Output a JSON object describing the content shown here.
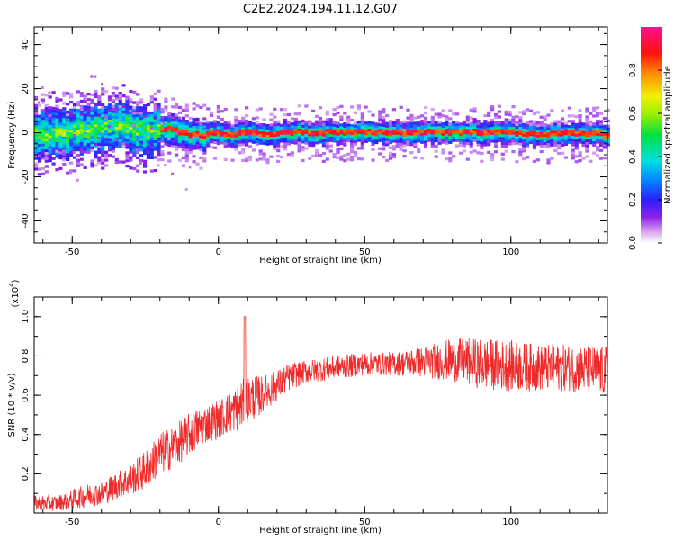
{
  "figure": {
    "title": "C2E2.2024.194.11.12.G07"
  },
  "chart_data": [
    {
      "type": "heatmap",
      "title": "",
      "xlabel": "Height of straight line (km)",
      "ylabel": "Frequency (Hz)",
      "xlim": [
        -63,
        133
      ],
      "ylim": [
        -50,
        48
      ],
      "xticks": [
        -50,
        0,
        50,
        100
      ],
      "yticks": [
        -40,
        -20,
        0,
        20,
        40
      ],
      "colorbar": {
        "label": "Normalized spectral amplitude",
        "range": [
          0,
          1
        ],
        "ticks": [
          0.0,
          0.2,
          0.4,
          0.6,
          0.8
        ],
        "colormap": "rainbow (white-violet-blue-cyan-green-yellow-orange-red-magenta)"
      },
      "ridge": {
        "x": [
          -63,
          -55,
          -45,
          -38,
          -34,
          -30,
          -25,
          -20,
          -15,
          -10,
          -5,
          0,
          5,
          10,
          15,
          20,
          30,
          40,
          50,
          60,
          70,
          80,
          90,
          100,
          110,
          120,
          133
        ],
        "frequency": [
          -1,
          0,
          1,
          3,
          4,
          1,
          0,
          2,
          1,
          -1,
          -1,
          0,
          -1,
          0,
          -1,
          0,
          0,
          0,
          0,
          0,
          0,
          0,
          0,
          0,
          -1,
          0,
          -1
        ]
      }
    },
    {
      "type": "line",
      "title": "",
      "xlabel": "Height of straight line (km)",
      "ylabel": "SNR (10 * v/v)",
      "y_multiplier": "(x10^4)",
      "xlim": [
        -63,
        133
      ],
      "ylim": [
        0,
        1.1
      ],
      "xticks": [
        -50,
        0,
        50,
        100
      ],
      "yticks": [
        0.2,
        0.4,
        0.6,
        0.8,
        1.0
      ],
      "line_color": "#ee2a2a",
      "series": [
        {
          "x": [
            -63,
            -55,
            -50,
            -45,
            -40,
            -35,
            -30,
            -25,
            -20,
            -15,
            -10,
            -5,
            0,
            5,
            8,
            10,
            15,
            20,
            25,
            30,
            40,
            50,
            60,
            70,
            80,
            90,
            100,
            110,
            120,
            133
          ],
          "mean": [
            0.05,
            0.05,
            0.07,
            0.09,
            0.1,
            0.14,
            0.17,
            0.22,
            0.3,
            0.34,
            0.4,
            0.45,
            0.48,
            0.52,
            0.55,
            0.58,
            0.6,
            0.65,
            0.7,
            0.72,
            0.74,
            0.76,
            0.76,
            0.77,
            0.78,
            0.76,
            0.75,
            0.74,
            0.74,
            0.72
          ],
          "spread": [
            0.04,
            0.04,
            0.05,
            0.06,
            0.06,
            0.07,
            0.08,
            0.1,
            0.11,
            0.11,
            0.11,
            0.1,
            0.1,
            0.11,
            0.13,
            0.12,
            0.1,
            0.08,
            0.07,
            0.06,
            0.06,
            0.06,
            0.06,
            0.08,
            0.11,
            0.13,
            0.13,
            0.12,
            0.12,
            0.13
          ]
        }
      ],
      "annotations": [
        {
          "x": 9,
          "y": 1.0,
          "note": "spike"
        }
      ]
    }
  ],
  "labels": {
    "top_xlabel": "Height of straight line (km)",
    "top_ylabel": "Frequency (Hz)",
    "bottom_xlabel": "Height of straight line (km)",
    "bottom_ylabel": "SNR (10 * v/v)",
    "bottom_multiplier_base": "(x10",
    "bottom_multiplier_exp": "4",
    "bottom_multiplier_close": ")",
    "colorbar_label": "Normalized spectral amplitude"
  }
}
